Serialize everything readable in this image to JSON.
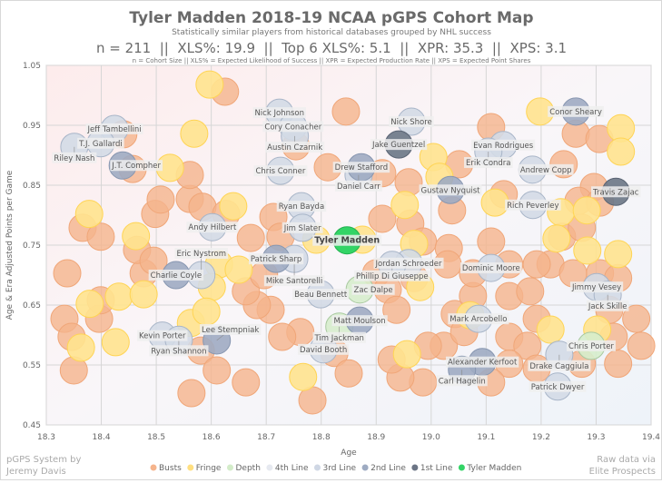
{
  "chart_data": {
    "type": "scatter",
    "title": "Tyler Madden 2018-19 NCAA pGPS Cohort Map",
    "subtitle": "Statistically similar players from historical databases grouped by NHL success",
    "stats_line": "n = 211  ||  XLS%: 19.9  ||  Top 6 XLS%: 5.1  ||  XPR: 35.3  ||  XPS: 3.1",
    "definitions": "n = Cohort Size || XLS% = Expected Likelihood of Success || XPR = Expected Production Rate || XPS = Expected Point Shares",
    "xlabel": "Age",
    "ylabel": "Age & Era Adjusted Points per Game",
    "xlim": [
      18.3,
      19.4
    ],
    "ylim": [
      0.45,
      1.05
    ],
    "xticks": [
      "18.3",
      "18.4",
      "18.5",
      "18.6",
      "18.7",
      "18.8",
      "18.9",
      "19.0",
      "19.1",
      "19.2",
      "19.3",
      "19.4"
    ],
    "yticks": [
      "0.45",
      "0.55",
      "0.65",
      "0.75",
      "0.85",
      "0.95",
      "1.05"
    ],
    "grid": true,
    "legend_position": "bottom",
    "legend": [
      {
        "key": "bust",
        "label": "Busts",
        "color": "#f5b48c"
      },
      {
        "key": "fringe",
        "label": "Fringe",
        "color": "#ffdf80"
      },
      {
        "key": "depth",
        "label": "Depth",
        "color": "#d3ecc9"
      },
      {
        "key": "fourth",
        "label": "4th Line",
        "color": "#e6e9f0"
      },
      {
        "key": "third",
        "label": "3rd Line",
        "color": "#cfd7e4"
      },
      {
        "key": "second",
        "label": "2nd Line",
        "color": "#9eabc2"
      },
      {
        "key": "first",
        "label": "1st Line",
        "color": "#6c7585"
      },
      {
        "key": "subject",
        "label": "Tyler Madden",
        "color": "#33d466"
      }
    ],
    "credit_left": [
      "pGPS System by",
      "Jeremy Davis"
    ],
    "credit_right": [
      "Raw data via",
      "Elite Prospects"
    ],
    "busts": [
      [
        18.625,
        1.006
      ],
      [
        18.845,
        0.973
      ],
      [
        18.754,
        0.915
      ],
      [
        19.109,
        0.947
      ],
      [
        19.263,
        0.936
      ],
      [
        19.306,
        0.927
      ],
      [
        19.241,
        0.885
      ],
      [
        19.296,
        0.847
      ],
      [
        19.268,
        0.824
      ],
      [
        19.307,
        0.821
      ],
      [
        18.812,
        0.88
      ],
      [
        18.911,
        0.87
      ],
      [
        19.051,
        0.885
      ],
      [
        19.132,
        0.835
      ],
      [
        18.959,
        0.855
      ],
      [
        19.038,
        0.808
      ],
      [
        18.962,
        0.786
      ],
      [
        18.985,
        0.756
      ],
      [
        18.911,
        0.794
      ],
      [
        19.109,
        0.756
      ],
      [
        19.032,
        0.745
      ],
      [
        19.03,
        0.718
      ],
      [
        18.9,
        0.703
      ],
      [
        18.969,
        0.695
      ],
      [
        18.921,
        0.676
      ],
      [
        18.937,
        0.642
      ],
      [
        19.023,
        0.582
      ],
      [
        19.043,
        0.635
      ],
      [
        19.076,
        0.665
      ],
      [
        19.06,
        0.605
      ],
      [
        19.142,
        0.665
      ],
      [
        19.18,
        0.673
      ],
      [
        19.192,
        0.627
      ],
      [
        19.142,
        0.597
      ],
      [
        19.175,
        0.582
      ],
      [
        19.142,
        0.552
      ],
      [
        19.109,
        0.521
      ],
      [
        19.192,
        0.544
      ],
      [
        19.274,
        0.552
      ],
      [
        19.34,
        0.552
      ],
      [
        19.332,
        0.597
      ],
      [
        19.324,
        0.642
      ],
      [
        19.307,
        0.703
      ],
      [
        19.238,
        0.764
      ],
      [
        19.217,
        0.718
      ],
      [
        19.274,
        0.779
      ],
      [
        19.34,
        0.695
      ],
      [
        19.373,
        0.627
      ],
      [
        19.382,
        0.582
      ],
      [
        19.258,
        0.703
      ],
      [
        19.142,
        0.718
      ],
      [
        19.192,
        0.718
      ],
      [
        19.076,
        0.703
      ],
      [
        18.994,
        0.582
      ],
      [
        18.985,
        0.521
      ],
      [
        18.944,
        0.529
      ],
      [
        18.928,
        0.559
      ],
      [
        18.824,
        0.57
      ],
      [
        18.85,
        0.536
      ],
      [
        18.784,
        0.491
      ],
      [
        18.762,
        0.605
      ],
      [
        18.729,
        0.597
      ],
      [
        18.708,
        0.642
      ],
      [
        18.683,
        0.65
      ],
      [
        18.663,
        0.673
      ],
      [
        18.696,
        0.7
      ],
      [
        18.581,
        0.574
      ],
      [
        18.564,
        0.503
      ],
      [
        18.61,
        0.541
      ],
      [
        18.663,
        0.521
      ],
      [
        18.366,
        0.779
      ],
      [
        18.399,
        0.764
      ],
      [
        18.338,
        0.703
      ],
      [
        18.333,
        0.627
      ],
      [
        18.346,
        0.597
      ],
      [
        18.396,
        0.627
      ],
      [
        18.35,
        0.541
      ],
      [
        18.399,
        0.658
      ],
      [
        18.477,
        0.703
      ],
      [
        18.465,
        0.742
      ],
      [
        18.498,
        0.802
      ],
      [
        18.508,
        0.826
      ],
      [
        18.561,
        0.827
      ],
      [
        18.584,
        0.814
      ],
      [
        18.561,
        0.867
      ],
      [
        18.457,
        0.877
      ],
      [
        18.495,
        0.724
      ],
      [
        18.627,
        0.802
      ],
      [
        18.672,
        0.762
      ],
      [
        18.713,
        0.797
      ],
      [
        18.726,
        0.764
      ],
      [
        18.44,
        0.935
      ]
    ],
    "fringe": [
      [
        18.597,
        1.018
      ],
      [
        19.198,
        0.973
      ],
      [
        18.569,
        0.936
      ],
      [
        19.345,
        0.945
      ],
      [
        18.525,
        0.879
      ],
      [
        19.345,
        0.906
      ],
      [
        19.004,
        0.897
      ],
      [
        19.015,
        0.864
      ],
      [
        18.378,
        0.802
      ],
      [
        18.463,
        0.765
      ],
      [
        18.64,
        0.815
      ],
      [
        18.952,
        0.817
      ],
      [
        19.116,
        0.821
      ],
      [
        19.236,
        0.805
      ],
      [
        19.283,
        0.808
      ],
      [
        18.791,
        0.759
      ],
      [
        18.875,
        0.759
      ],
      [
        18.969,
        0.752
      ],
      [
        19.228,
        0.761
      ],
      [
        19.34,
        0.735
      ],
      [
        18.614,
        0.718
      ],
      [
        18.65,
        0.709
      ],
      [
        18.601,
        0.68
      ],
      [
        18.432,
        0.664
      ],
      [
        18.379,
        0.652
      ],
      [
        18.363,
        0.579
      ],
      [
        18.426,
        0.588
      ],
      [
        18.563,
        0.62
      ],
      [
        18.591,
        0.639
      ],
      [
        18.98,
        0.68
      ],
      [
        19.071,
        0.633
      ],
      [
        19.217,
        0.609
      ],
      [
        19.302,
        0.609
      ],
      [
        19.284,
        0.741
      ],
      [
        18.767,
        0.53
      ],
      [
        18.956,
        0.568
      ],
      [
        18.477,
        0.668
      ]
    ],
    "players": [
      {
        "name": "Jeff Tambellini",
        "tier": "third",
        "x": 18.424,
        "y": 0.944
      },
      {
        "name": "T.J. Gallardi",
        "tier": "third",
        "x": 18.399,
        "y": 0.92
      },
      {
        "name": "Riley Nash",
        "tier": "third",
        "x": 18.351,
        "y": 0.914
      },
      {
        "name": "J.T. Compher",
        "tier": "second",
        "x": 18.439,
        "y": 0.883
      },
      {
        "name": "Nick Johnson",
        "tier": "third",
        "x": 18.724,
        "y": 0.971
      },
      {
        "name": "Cory Conacher",
        "tier": "third",
        "x": 18.749,
        "y": 0.948
      },
      {
        "name": "Austin Czarnik",
        "tier": "third",
        "x": 18.752,
        "y": 0.932
      },
      {
        "name": "Chris Conner",
        "tier": "third",
        "x": 18.726,
        "y": 0.874
      },
      {
        "name": "Ryan Bayda",
        "tier": "third",
        "x": 18.764,
        "y": 0.815
      },
      {
        "name": "Jim Slater",
        "tier": "third",
        "x": 18.766,
        "y": 0.779
      },
      {
        "name": "Andy Hilbert",
        "tier": "third",
        "x": 18.602,
        "y": 0.78
      },
      {
        "name": "Patrick Sharp",
        "tier": "second",
        "x": 18.718,
        "y": 0.727
      },
      {
        "name": "Mike Santorelli",
        "tier": "third",
        "x": 18.751,
        "y": 0.727
      },
      {
        "name": "Charlie Coyle",
        "tier": "second",
        "x": 18.536,
        "y": 0.7
      },
      {
        "name": "Eric Nystrom",
        "tier": "third",
        "x": 18.582,
        "y": 0.7
      },
      {
        "name": "Jake Guentzel",
        "tier": "first",
        "x": 18.941,
        "y": 0.918
      },
      {
        "name": "Nick Shore",
        "tier": "third",
        "x": 18.964,
        "y": 0.956
      },
      {
        "name": "Drew Stafford",
        "tier": "second",
        "x": 18.873,
        "y": 0.88
      },
      {
        "name": "Daniel Carr",
        "tier": "third",
        "x": 18.868,
        "y": 0.867
      },
      {
        "name": "Gustav Nyquist",
        "tier": "second",
        "x": 19.035,
        "y": 0.842
      },
      {
        "name": "Evan Rodrigues",
        "tier": "third",
        "x": 19.131,
        "y": 0.917
      },
      {
        "name": "Erik Condra",
        "tier": "third",
        "x": 19.104,
        "y": 0.906
      },
      {
        "name": "Conor Sheary",
        "tier": "second",
        "x": 19.263,
        "y": 0.973
      },
      {
        "name": "Andrew Copp",
        "tier": "third",
        "x": 19.184,
        "y": 0.876
      },
      {
        "name": "Rich Peverley",
        "tier": "third",
        "x": 19.185,
        "y": 0.817
      },
      {
        "name": "Travis Zajac",
        "tier": "first",
        "x": 19.336,
        "y": 0.839
      },
      {
        "name": "Jordan Schroeder",
        "tier": "third",
        "x": 18.959,
        "y": 0.72
      },
      {
        "name": "Phillip Di Giuseppe",
        "tier": "third",
        "x": 18.929,
        "y": 0.717
      },
      {
        "name": "Beau Bennett",
        "tier": "third",
        "x": 18.799,
        "y": 0.668
      },
      {
        "name": "Zac Dalpe",
        "tier": "depth",
        "x": 18.87,
        "y": 0.676
      },
      {
        "name": "Matt Moulson",
        "tier": "second",
        "x": 18.87,
        "y": 0.624
      },
      {
        "name": "Tim Jackman",
        "tier": "depth",
        "x": 18.833,
        "y": 0.614
      },
      {
        "name": "David Booth",
        "tier": "third",
        "x": 18.804,
        "y": 0.576
      },
      {
        "name": "Kevin Porter",
        "tier": "third",
        "x": 18.511,
        "y": 0.599
      },
      {
        "name": "Ryan Shannon",
        "tier": "third",
        "x": 18.541,
        "y": 0.592
      },
      {
        "name": "Lee Stempniak",
        "tier": "second",
        "x": 18.61,
        "y": 0.591
      },
      {
        "name": "Dominic Moore",
        "tier": "third",
        "x": 19.109,
        "y": 0.712
      },
      {
        "name": "Jimmy Vesey",
        "tier": "third",
        "x": 19.301,
        "y": 0.68
      },
      {
        "name": "Jack Skille",
        "tier": "third",
        "x": 19.321,
        "y": 0.667
      },
      {
        "name": "Mark Arcobello",
        "tier": "third",
        "x": 19.086,
        "y": 0.627
      },
      {
        "name": "Chris Porter",
        "tier": "depth",
        "x": 19.291,
        "y": 0.582
      },
      {
        "name": "Drake Caggiula",
        "tier": "third",
        "x": 19.233,
        "y": 0.567
      },
      {
        "name": "Alexander Kerfoot",
        "tier": "second",
        "x": 19.093,
        "y": 0.555
      },
      {
        "name": "Carl Hagelin",
        "tier": "second",
        "x": 19.056,
        "y": 0.542
      },
      {
        "name": "Patrick Dwyer",
        "tier": "third",
        "x": 19.23,
        "y": 0.514
      },
      {
        "name": "Tyler Madden",
        "tier": "subject",
        "x": 18.847,
        "y": 0.758
      }
    ]
  }
}
